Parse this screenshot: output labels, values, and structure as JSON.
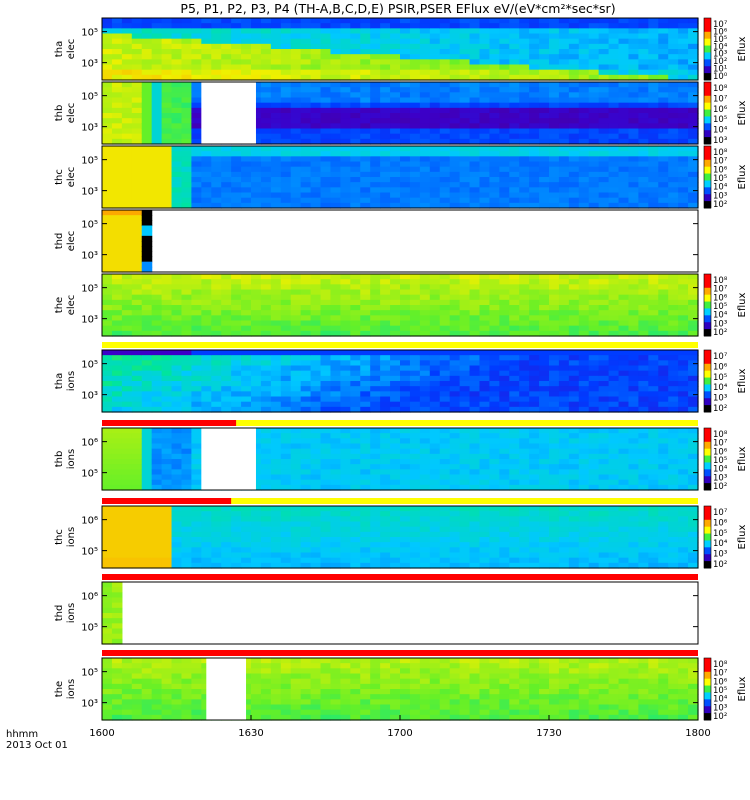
{
  "chart_data": {
    "type": "heatmap",
    "title": "P5, P1, P2, P3, P4 (TH-A,B,C,D,E) PSIR,PSER EFlux eV/(eV*cm²*sec*sr)",
    "x_ticks": [
      "1600",
      "1630",
      "1700",
      "1730",
      "1800"
    ],
    "x_range": [
      "16:00",
      "18:00"
    ],
    "footer": {
      "label": "hhmm",
      "date": "2013 Oct 01"
    },
    "colorbar_label": "Eflux",
    "panels": [
      {
        "line1": "tha",
        "line2": "elec",
        "y_ticks": [
          "10⁵",
          "10³"
        ],
        "colorbar_ticks": [
          "10⁷",
          "10⁶",
          "10⁵",
          "10⁴",
          "10³",
          "10²",
          "10¹",
          "10⁰"
        ],
        "profile": "tha_elec"
      },
      {
        "line1": "thb",
        "line2": "elec",
        "y_ticks": [
          "10⁵",
          "10³"
        ],
        "colorbar_ticks": [
          "10⁸",
          "10⁷",
          "10⁶",
          "10⁵",
          "10⁴",
          "10³"
        ],
        "profile": "thb_elec",
        "gap_hhmm": [
          "16:20",
          "16:31"
        ]
      },
      {
        "line1": "thc",
        "line2": "elec",
        "y_ticks": [
          "10⁵",
          "10³"
        ],
        "colorbar_ticks": [
          "10⁸",
          "10⁷",
          "10⁶",
          "10⁵",
          "10⁴",
          "10³",
          "10²"
        ],
        "profile": "thc_elec"
      },
      {
        "line1": "thd",
        "line2": "elec",
        "y_ticks": [
          "10⁵",
          "10³"
        ],
        "colorbar_ticks": [],
        "profile": "thd_elec",
        "data_end_hhmm": "16:10"
      },
      {
        "line1": "the",
        "line2": "elec",
        "y_ticks": [
          "10⁵",
          "10³"
        ],
        "colorbar_ticks": [
          "10⁸",
          "10⁷",
          "10⁶",
          "10⁵",
          "10⁴",
          "10³",
          "10²"
        ],
        "profile": "the_elec"
      },
      {
        "line1": "tha",
        "line2": "ions",
        "y_ticks": [
          "10⁵",
          "10³"
        ],
        "colorbar_ticks": [
          "10⁷",
          "10⁶",
          "10⁵",
          "10⁴",
          "10³",
          "10²"
        ],
        "profile": "tha_ions"
      },
      {
        "line1": "thb",
        "line2": "ions",
        "y_ticks": [
          "10⁶",
          "10⁵"
        ],
        "colorbar_ticks": [
          "10⁸",
          "10⁷",
          "10⁶",
          "10⁵",
          "10⁴",
          "10³",
          "10²"
        ],
        "profile": "thb_ions",
        "gap_hhmm": [
          "16:20",
          "16:31"
        ]
      },
      {
        "line1": "thc",
        "line2": "ions",
        "y_ticks": [
          "10⁶",
          "10⁵"
        ],
        "colorbar_ticks": [
          "10⁷",
          "10⁶",
          "10⁵",
          "10⁴",
          "10³",
          "10²"
        ],
        "profile": "thc_ions"
      },
      {
        "line1": "thd",
        "line2": "ions",
        "y_ticks": [
          "10⁶",
          "10⁵"
        ],
        "colorbar_ticks": [],
        "profile": "thd_ions",
        "data_end_hhmm": "16:04"
      },
      {
        "line1": "the",
        "line2": "ions",
        "y_ticks": [
          "10⁵",
          "10³"
        ],
        "colorbar_ticks": [
          "10⁸",
          "10⁷",
          "10⁶",
          "10⁵",
          "10⁴",
          "10³",
          "10²"
        ],
        "profile": "the_ions",
        "gap_hhmm": [
          "16:21",
          "16:29"
        ]
      }
    ],
    "mode_bars": [
      {
        "after_panel": 5,
        "red_until_hhmm": "",
        "color_main": "#ffff00"
      },
      {
        "after_panel": 6,
        "red_until_hhmm": "16:27",
        "color_main": "#ffff00"
      },
      {
        "after_panel": 7,
        "red_until_hhmm": "16:26",
        "color_main": "#ffff00"
      },
      {
        "after_panel": 8,
        "red_until_hhmm": "18:00",
        "color_main": "#ff0000"
      },
      {
        "after_panel": 9,
        "red_until_hhmm": "18:00",
        "color_main": "#ff0000"
      }
    ]
  }
}
